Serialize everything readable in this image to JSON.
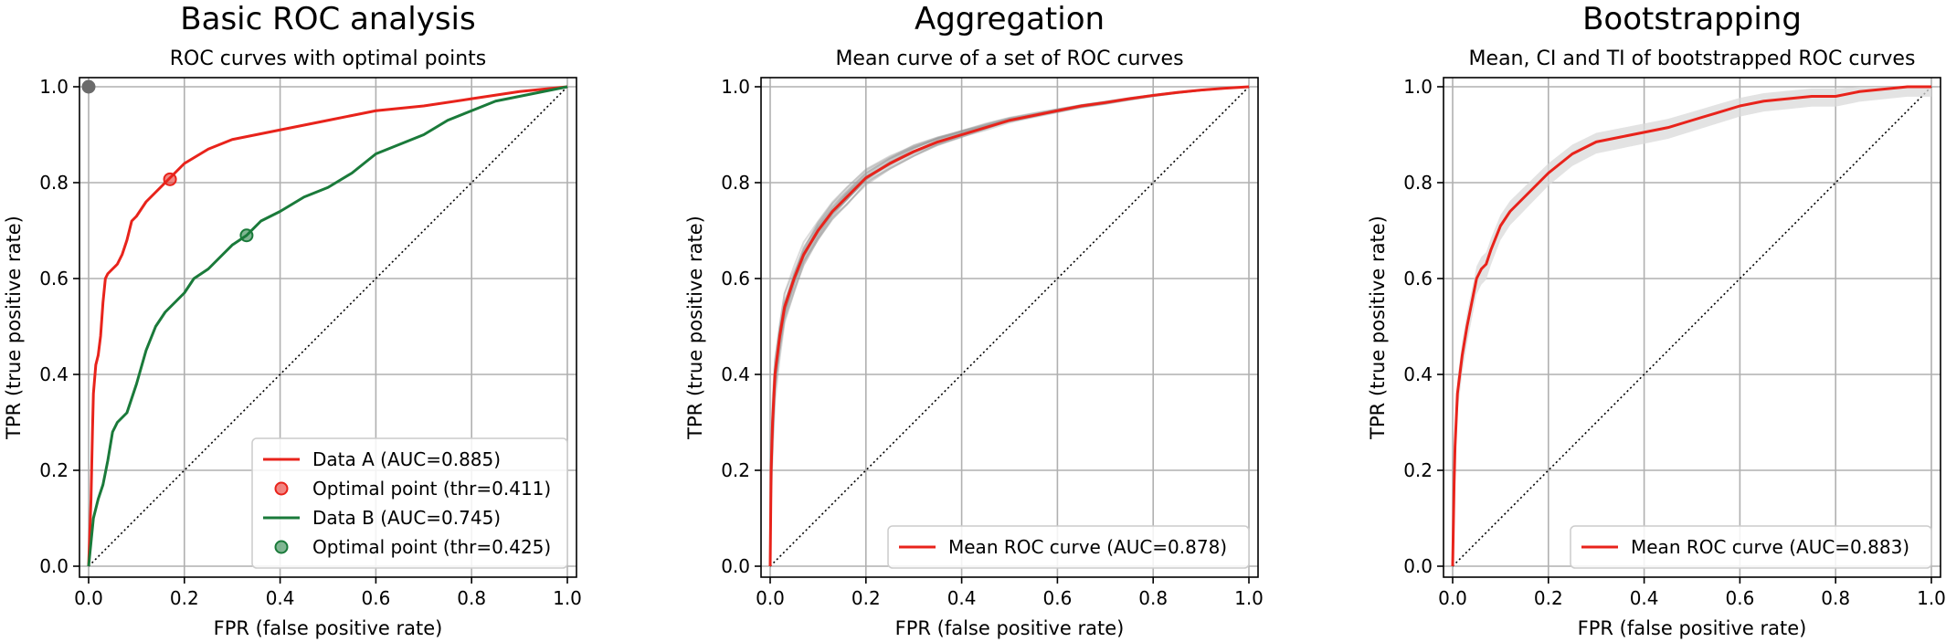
{
  "chart_data": [
    {
      "type": "line",
      "suptitle": "Basic ROC analysis",
      "title": "ROC curves with optimal points",
      "xlabel": "FPR (false positive rate)",
      "ylabel": "TPR (true positive rate)",
      "xlim": [
        0,
        1
      ],
      "ylim": [
        0,
        1
      ],
      "xticks": [
        "0.0",
        "0.2",
        "0.4",
        "0.6",
        "0.8",
        "1.0"
      ],
      "yticks": [
        "0.0",
        "0.2",
        "0.4",
        "0.6",
        "0.8",
        "1.0"
      ],
      "grid": true,
      "legend_position": "lower-right",
      "series": [
        {
          "name": "Data A",
          "legend": "Data A (AUC=0.885)",
          "color": "#e8231b",
          "x": [
            0.0,
            0.005,
            0.008,
            0.01,
            0.015,
            0.02,
            0.025,
            0.03,
            0.035,
            0.04,
            0.05,
            0.06,
            0.07,
            0.08,
            0.09,
            0.1,
            0.12,
            0.14,
            0.16,
            0.17,
            0.2,
            0.25,
            0.3,
            0.35,
            0.4,
            0.45,
            0.5,
            0.55,
            0.6,
            0.7,
            0.8,
            0.9,
            0.95,
            1.0
          ],
          "y": [
            0.0,
            0.14,
            0.28,
            0.36,
            0.42,
            0.44,
            0.48,
            0.55,
            0.6,
            0.61,
            0.62,
            0.63,
            0.65,
            0.68,
            0.72,
            0.73,
            0.76,
            0.78,
            0.8,
            0.81,
            0.84,
            0.87,
            0.89,
            0.9,
            0.91,
            0.92,
            0.93,
            0.94,
            0.95,
            0.96,
            0.975,
            0.99,
            0.995,
            1.0
          ]
        },
        {
          "name": "Data B",
          "legend": "Data B (AUC=0.745)",
          "color": "#1a7a3a",
          "x": [
            0.0,
            0.005,
            0.01,
            0.02,
            0.03,
            0.04,
            0.05,
            0.06,
            0.08,
            0.1,
            0.12,
            0.14,
            0.16,
            0.18,
            0.2,
            0.22,
            0.25,
            0.28,
            0.3,
            0.33,
            0.36,
            0.4,
            0.45,
            0.5,
            0.55,
            0.6,
            0.65,
            0.7,
            0.75,
            0.8,
            0.85,
            0.9,
            0.95,
            1.0
          ],
          "y": [
            0.0,
            0.05,
            0.1,
            0.14,
            0.17,
            0.22,
            0.28,
            0.3,
            0.32,
            0.38,
            0.45,
            0.5,
            0.53,
            0.55,
            0.57,
            0.6,
            0.62,
            0.65,
            0.67,
            0.69,
            0.72,
            0.74,
            0.77,
            0.79,
            0.82,
            0.86,
            0.88,
            0.9,
            0.93,
            0.95,
            0.97,
            0.98,
            0.99,
            1.0
          ]
        }
      ],
      "points": [
        {
          "name": "Optimal point A",
          "legend": "Optimal point (thr=0.411)",
          "x": 0.17,
          "y": 0.807,
          "color": "#e8231b"
        },
        {
          "name": "Optimal point B",
          "legend": "Optimal point (thr=0.425)",
          "x": 0.33,
          "y": 0.69,
          "color": "#1a7a3a"
        },
        {
          "name": "Perfect classifier",
          "x": 0.0,
          "y": 1.0,
          "color": "#6b6b6b"
        }
      ]
    },
    {
      "type": "line",
      "suptitle": "Aggregation",
      "title": "Mean curve of a set of ROC curves",
      "xlabel": "FPR (false positive rate)",
      "ylabel": "TPR (true positive rate)",
      "xlim": [
        0,
        1
      ],
      "ylim": [
        0,
        1
      ],
      "xticks": [
        "0.0",
        "0.2",
        "0.4",
        "0.6",
        "0.8",
        "1.0"
      ],
      "yticks": [
        "0.0",
        "0.2",
        "0.4",
        "0.6",
        "0.8",
        "1.0"
      ],
      "grid": true,
      "legend_position": "lower-right",
      "background_curves": 25,
      "series": [
        {
          "name": "Mean ROC curve",
          "legend": "Mean ROC curve (AUC=0.878)",
          "color": "#e8231b",
          "x": [
            0.0,
            0.002,
            0.005,
            0.01,
            0.02,
            0.03,
            0.05,
            0.07,
            0.1,
            0.13,
            0.16,
            0.2,
            0.25,
            0.3,
            0.35,
            0.4,
            0.45,
            0.5,
            0.55,
            0.6,
            0.65,
            0.7,
            0.75,
            0.8,
            0.85,
            0.9,
            0.95,
            1.0
          ],
          "y": [
            0.0,
            0.2,
            0.3,
            0.4,
            0.48,
            0.54,
            0.6,
            0.65,
            0.7,
            0.74,
            0.77,
            0.81,
            0.84,
            0.865,
            0.885,
            0.9,
            0.915,
            0.93,
            0.94,
            0.95,
            0.96,
            0.967,
            0.975,
            0.982,
            0.988,
            0.993,
            0.997,
            1.0
          ]
        }
      ]
    },
    {
      "type": "line",
      "suptitle": "Bootstrapping",
      "title": "Mean, CI and TI of bootstrapped ROC curves",
      "xlabel": "FPR (false positive rate)",
      "ylabel": "TPR (true positive rate)",
      "xlim": [
        0,
        1
      ],
      "ylim": [
        0,
        1
      ],
      "xticks": [
        "0.0",
        "0.2",
        "0.4",
        "0.6",
        "0.8",
        "1.0"
      ],
      "yticks": [
        "0.0",
        "0.2",
        "0.4",
        "0.6",
        "0.8",
        "1.0"
      ],
      "grid": true,
      "legend_position": "lower-right",
      "interval_half_width": 0.04,
      "series": [
        {
          "name": "Mean ROC curve",
          "legend": "Mean ROC curve (AUC=0.883)",
          "color": "#e8231b",
          "x": [
            0.0,
            0.003,
            0.005,
            0.01,
            0.02,
            0.03,
            0.04,
            0.05,
            0.06,
            0.07,
            0.08,
            0.1,
            0.12,
            0.14,
            0.16,
            0.18,
            0.2,
            0.25,
            0.3,
            0.35,
            0.4,
            0.45,
            0.5,
            0.55,
            0.6,
            0.65,
            0.7,
            0.75,
            0.8,
            0.85,
            0.9,
            0.95,
            1.0
          ],
          "y": [
            0.0,
            0.17,
            0.25,
            0.36,
            0.44,
            0.5,
            0.55,
            0.6,
            0.62,
            0.63,
            0.66,
            0.71,
            0.74,
            0.76,
            0.78,
            0.8,
            0.82,
            0.86,
            0.885,
            0.895,
            0.905,
            0.915,
            0.93,
            0.945,
            0.96,
            0.97,
            0.975,
            0.98,
            0.98,
            0.99,
            0.995,
            1.0,
            1.0
          ]
        }
      ]
    }
  ]
}
